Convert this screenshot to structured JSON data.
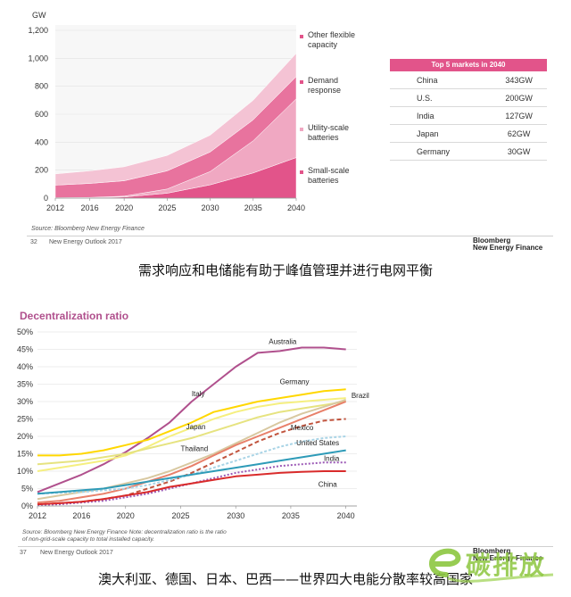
{
  "chart_data": [
    {
      "type": "area",
      "title": "",
      "ylabel": "GW",
      "xlabel": "",
      "ylim": [
        0,
        1200
      ],
      "y_ticks": [
        "0",
        "200",
        "400",
        "600",
        "800",
        "1,000",
        "1,200"
      ],
      "x_ticks": [
        "2012",
        "2016",
        "2020",
        "2025",
        "2030",
        "2035",
        "2040"
      ],
      "x": [
        2012,
        2016,
        2020,
        2025,
        2030,
        2035,
        2040
      ],
      "stacked": true,
      "series": [
        {
          "name": "Small-scale batteries",
          "color": "#e2548a",
          "values": [
            2,
            3,
            8,
            35,
            95,
            180,
            290
          ]
        },
        {
          "name": "Utility-scale batteries",
          "color": "#f0a8c2",
          "values": [
            1,
            2,
            6,
            30,
            95,
            230,
            420
          ]
        },
        {
          "name": "Demand response",
          "color": "#e8739e",
          "values": [
            90,
            100,
            110,
            130,
            140,
            150,
            160
          ]
        },
        {
          "name": "Other flexible capacity",
          "color": "#f4c3d4",
          "values": [
            80,
            90,
            100,
            110,
            120,
            140,
            165
          ]
        }
      ],
      "legend_placement": "right",
      "source": "Source: Bloomberg New Energy Finance"
    },
    {
      "type": "table",
      "title": "Top 5 markets in 2040",
      "rows": [
        [
          "China",
          "343GW"
        ],
        [
          "U.S.",
          "200GW"
        ],
        [
          "India",
          "127GW"
        ],
        [
          "Japan",
          "62GW"
        ],
        [
          "Germany",
          "30GW"
        ]
      ]
    },
    {
      "type": "line",
      "title": "Decentralization ratio",
      "xlabel": "",
      "ylabel": "",
      "ylim": [
        0,
        50
      ],
      "xlim": [
        2012,
        2041
      ],
      "y_ticks": [
        "0%",
        "5%",
        "10%",
        "15%",
        "20%",
        "25%",
        "30%",
        "35%",
        "40%",
        "45%",
        "50%"
      ],
      "x_ticks": [
        "2012",
        "2016",
        "2020",
        "2025",
        "2030",
        "2035",
        "2040"
      ],
      "grid": true,
      "series": [
        {
          "name": "Australia",
          "color": "#b0508d",
          "dash": "",
          "points": [
            [
              2012,
              4
            ],
            [
              2014,
              6.5
            ],
            [
              2016,
              9
            ],
            [
              2018,
              12
            ],
            [
              2020,
              15.5
            ],
            [
              2022,
              19.5
            ],
            [
              2024,
              24
            ],
            [
              2026,
              30
            ],
            [
              2028,
              35
            ],
            [
              2030,
              40
            ],
            [
              2032,
              44
            ],
            [
              2034,
              44.5
            ],
            [
              2036,
              45.5
            ],
            [
              2038,
              45.5
            ],
            [
              2040,
              45
            ]
          ]
        },
        {
          "name": "Germany",
          "color": "#ffd700",
          "dash": "",
          "points": [
            [
              2012,
              14.5
            ],
            [
              2014,
              14.5
            ],
            [
              2016,
              15
            ],
            [
              2018,
              16
            ],
            [
              2020,
              17.5
            ],
            [
              2022,
              19
            ],
            [
              2024,
              21.5
            ],
            [
              2026,
              24
            ],
            [
              2028,
              27
            ],
            [
              2030,
              28.5
            ],
            [
              2032,
              30
            ],
            [
              2034,
              31
            ],
            [
              2036,
              32
            ],
            [
              2038,
              33
            ],
            [
              2040,
              33.5
            ]
          ]
        },
        {
          "name": "Italy",
          "color": "#f5ef80",
          "dash": "",
          "points": [
            [
              2012,
              10
            ],
            [
              2014,
              11
            ],
            [
              2016,
              12
            ],
            [
              2018,
              13
            ],
            [
              2020,
              14.5
            ],
            [
              2022,
              17
            ],
            [
              2024,
              20
            ],
            [
              2026,
              22.5
            ],
            [
              2028,
              25
            ],
            [
              2030,
              27
            ],
            [
              2032,
              28.5
            ],
            [
              2034,
              29.5
            ],
            [
              2036,
              30
            ],
            [
              2038,
              30.5
            ],
            [
              2040,
              31
            ]
          ]
        },
        {
          "name": "Japan",
          "color": "#e6e380",
          "dash": "",
          "points": [
            [
              2012,
              12
            ],
            [
              2014,
              12.5
            ],
            [
              2016,
              13
            ],
            [
              2018,
              14
            ],
            [
              2020,
              15
            ],
            [
              2022,
              16.5
            ],
            [
              2024,
              18
            ],
            [
              2026,
              19.5
            ],
            [
              2028,
              21.5
            ],
            [
              2030,
              23.5
            ],
            [
              2032,
              25.5
            ],
            [
              2034,
              27
            ],
            [
              2036,
              28
            ],
            [
              2038,
              29
            ],
            [
              2040,
              30
            ]
          ]
        },
        {
          "name": "Brazil",
          "color": "#d8c8a0",
          "dash": "",
          "points": [
            [
              2012,
              2
            ],
            [
              2014,
              3
            ],
            [
              2016,
              4
            ],
            [
              2018,
              5
            ],
            [
              2020,
              6.5
            ],
            [
              2022,
              8
            ],
            [
              2024,
              10
            ],
            [
              2026,
              12.5
            ],
            [
              2028,
              15
            ],
            [
              2030,
              18
            ],
            [
              2032,
              21
            ],
            [
              2034,
              24
            ],
            [
              2036,
              26.5
            ],
            [
              2038,
              28.5
            ],
            [
              2040,
              30.5
            ]
          ]
        },
        {
          "name": "Thailand",
          "color": "#e8806a",
          "dash": "",
          "points": [
            [
              2012,
              1
            ],
            [
              2014,
              1.5
            ],
            [
              2016,
              2.5
            ],
            [
              2018,
              3.5
            ],
            [
              2020,
              5
            ],
            [
              2022,
              7
            ],
            [
              2024,
              9
            ],
            [
              2026,
              11.5
            ],
            [
              2028,
              14.5
            ],
            [
              2030,
              17.5
            ],
            [
              2032,
              20
            ],
            [
              2034,
              22.5
            ],
            [
              2036,
              25
            ],
            [
              2038,
              27.5
            ],
            [
              2040,
              30
            ]
          ]
        },
        {
          "name": "Mexico",
          "color": "#c1553f",
          "dash": "5,3",
          "points": [
            [
              2012,
              0.5
            ],
            [
              2014,
              0.8
            ],
            [
              2016,
              1.2
            ],
            [
              2018,
              2
            ],
            [
              2020,
              3
            ],
            [
              2022,
              5
            ],
            [
              2024,
              7
            ],
            [
              2026,
              9.5
            ],
            [
              2028,
              12.5
            ],
            [
              2030,
              15.5
            ],
            [
              2032,
              18.5
            ],
            [
              2034,
              21
            ],
            [
              2036,
              23
            ],
            [
              2038,
              24.5
            ],
            [
              2040,
              25
            ]
          ]
        },
        {
          "name": "United States",
          "color": "#a9d4e6",
          "dash": "3,2",
          "points": [
            [
              2012,
              3.5
            ],
            [
              2014,
              3.8
            ],
            [
              2016,
              4
            ],
            [
              2018,
              4.5
            ],
            [
              2020,
              5
            ],
            [
              2022,
              6
            ],
            [
              2024,
              7.5
            ],
            [
              2026,
              9
            ],
            [
              2028,
              11
            ],
            [
              2030,
              13
            ],
            [
              2032,
              15
            ],
            [
              2034,
              17
            ],
            [
              2036,
              18.5
            ],
            [
              2038,
              19.5
            ],
            [
              2040,
              20
            ]
          ]
        },
        {
          "name": "India",
          "color": "#2e9bb8",
          "dash": "",
          "points": [
            [
              2012,
              3.5
            ],
            [
              2014,
              4
            ],
            [
              2016,
              4.5
            ],
            [
              2018,
              5
            ],
            [
              2020,
              6
            ],
            [
              2022,
              7
            ],
            [
              2024,
              8
            ],
            [
              2026,
              9
            ],
            [
              2028,
              10
            ],
            [
              2030,
              11
            ],
            [
              2032,
              12
            ],
            [
              2034,
              13
            ],
            [
              2036,
              14
            ],
            [
              2038,
              15
            ],
            [
              2040,
              16
            ]
          ]
        },
        {
          "name": "",
          "color": "#9b59b6",
          "dash": "2,2",
          "points": [
            [
              2012,
              0.3
            ],
            [
              2014,
              0.5
            ],
            [
              2016,
              1
            ],
            [
              2018,
              1.5
            ],
            [
              2020,
              2.5
            ],
            [
              2022,
              3.5
            ],
            [
              2024,
              5
            ],
            [
              2026,
              6.5
            ],
            [
              2028,
              8
            ],
            [
              2030,
              9.5
            ],
            [
              2032,
              10.5
            ],
            [
              2034,
              11.5
            ],
            [
              2036,
              12
            ],
            [
              2038,
              12.5
            ],
            [
              2040,
              12.5
            ]
          ]
        },
        {
          "name": "China",
          "color": "#d92b2b",
          "dash": "",
          "points": [
            [
              2012,
              0.5
            ],
            [
              2014,
              0.8
            ],
            [
              2016,
              1.2
            ],
            [
              2018,
              2
            ],
            [
              2020,
              3
            ],
            [
              2022,
              4
            ],
            [
              2024,
              5.5
            ],
            [
              2026,
              6.5
            ],
            [
              2028,
              7.5
            ],
            [
              2030,
              8.5
            ],
            [
              2032,
              9
            ],
            [
              2034,
              9.5
            ],
            [
              2036,
              9.8
            ],
            [
              2038,
              10
            ],
            [
              2040,
              10
            ]
          ]
        }
      ],
      "source": "Source: Bloomberg New Energy Finance  Note: decentralization ratio is the ratio of non-grid-scale capacity to total installed capacity."
    }
  ],
  "page": {
    "footer1": {
      "page": "32",
      "text": "New Energy Outlook 2017",
      "brand1": "Bloomberg",
      "brand2": "New Energy Finance"
    },
    "footer2": {
      "page": "37",
      "text": "New Energy Outlook 2017",
      "brand1": "Bloomberg",
      "brand2": "New Energy Finance"
    },
    "caption1": "需求响应和电储能有助于峰值管理并进行电网平衡",
    "caption2": "澳大利亚、德国、日本、巴西——世界四大电能分散率较高国家",
    "watermark": "碳排放",
    "legend_labels": {
      "other": [
        "Other flexible",
        "capacity"
      ],
      "demand": [
        "Demand",
        "response"
      ],
      "utility": [
        "Utility-scale",
        "batteries"
      ],
      "small": [
        "Small-scale",
        "batteries"
      ]
    },
    "top5_header": "Top 5 markets in 2040",
    "source1": "Source: Bloomberg New Energy Finance",
    "source2a": "Source: Bloomberg New Energy Finance  Note: decentralization ratio is the ratio",
    "source2b": "of non-grid-scale capacity to total installed capacity."
  }
}
